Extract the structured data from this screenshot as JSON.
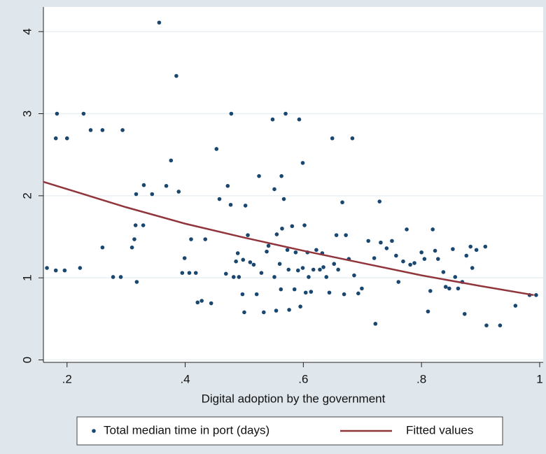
{
  "chart_data": {
    "type": "scatter",
    "x_label": "Digital adoption by the government",
    "xlim": [
      0.16,
      1.006
    ],
    "ylim": [
      -0.03,
      4.3
    ],
    "xticks": [
      {
        "value": 0.2,
        "label": ".2"
      },
      {
        "value": 0.4,
        "label": ".4"
      },
      {
        "value": 0.6,
        "label": ".6"
      },
      {
        "value": 0.8,
        "label": ".8"
      },
      1
    ],
    "yticks": [
      0,
      1,
      2,
      3,
      4
    ],
    "grid": true,
    "legend": "bottom",
    "series": [
      {
        "name": "Total median time in port (days)",
        "type": "scatter",
        "color": "#1a476f",
        "x": [
          0.166,
          0.183,
          0.181,
          0.181,
          0.196,
          0.2,
          0.222,
          0.228,
          0.24,
          0.26,
          0.26,
          0.278,
          0.291,
          0.294,
          0.31,
          0.314,
          0.316,
          0.318,
          0.317,
          0.329,
          0.33,
          0.344,
          0.356,
          0.368,
          0.376,
          0.385,
          0.389,
          0.395,
          0.399,
          0.407,
          0.41,
          0.418,
          0.421,
          0.428,
          0.434,
          0.444,
          0.453,
          0.458,
          0.469,
          0.472,
          0.477,
          0.478,
          0.482,
          0.486,
          0.489,
          0.491,
          0.497,
          0.498,
          0.5,
          0.502,
          0.506,
          0.51,
          0.516,
          0.521,
          0.525,
          0.529,
          0.533,
          0.538,
          0.541,
          0.548,
          0.551,
          0.551,
          0.554,
          0.555,
          0.56,
          0.562,
          0.563,
          0.564,
          0.567,
          0.57,
          0.573,
          0.575,
          0.576,
          0.581,
          0.585,
          0.587,
          0.591,
          0.593,
          0.595,
          0.599,
          0.599,
          0.602,
          0.604,
          0.607,
          0.609,
          0.613,
          0.617,
          0.622,
          0.628,
          0.632,
          0.634,
          0.639,
          0.644,
          0.649,
          0.652,
          0.656,
          0.659,
          0.666,
          0.669,
          0.672,
          0.677,
          0.683,
          0.686,
          0.693,
          0.699,
          0.71,
          0.72,
          0.722,
          0.729,
          0.731,
          0.741,
          0.75,
          0.757,
          0.761,
          0.769,
          0.775,
          0.781,
          0.788,
          0.8,
          0.805,
          0.811,
          0.815,
          0.819,
          0.823,
          0.828,
          0.837,
          0.841,
          0.847,
          0.853,
          0.857,
          0.862,
          0.869,
          0.873,
          0.876,
          0.883,
          0.886,
          0.893,
          0.908,
          0.91,
          0.933,
          0.959,
          0.983,
          0.994
        ],
        "values": [
          1.12,
          3.0,
          2.7,
          1.09,
          1.09,
          2.7,
          1.12,
          3.0,
          2.8,
          2.8,
          1.37,
          1.01,
          1.01,
          2.8,
          1.37,
          1.47,
          1.64,
          0.95,
          2.02,
          1.64,
          2.13,
          2.02,
          4.11,
          2.12,
          2.43,
          3.46,
          2.05,
          1.06,
          1.24,
          1.06,
          1.47,
          1.06,
          0.7,
          0.72,
          1.47,
          0.69,
          2.57,
          1.96,
          1.05,
          2.12,
          1.89,
          3.0,
          1.01,
          1.2,
          1.3,
          1.01,
          0.8,
          1.22,
          0.58,
          1.88,
          1.52,
          1.19,
          1.16,
          0.8,
          2.24,
          1.06,
          0.58,
          1.32,
          1.39,
          2.93,
          2.08,
          1.01,
          0.6,
          1.53,
          1.17,
          0.86,
          2.24,
          1.6,
          1.96,
          3.0,
          1.34,
          1.1,
          0.61,
          1.63,
          0.86,
          1.31,
          1.09,
          2.93,
          0.65,
          2.4,
          1.12,
          1.64,
          0.82,
          1.31,
          1.01,
          0.83,
          1.1,
          1.34,
          1.1,
          1.3,
          1.13,
          1.01,
          0.82,
          2.7,
          1.17,
          1.52,
          1.1,
          1.92,
          0.8,
          1.52,
          1.23,
          2.7,
          1.03,
          0.81,
          0.87,
          1.45,
          1.24,
          0.44,
          1.93,
          1.43,
          1.36,
          1.45,
          1.27,
          0.95,
          1.2,
          1.59,
          1.16,
          1.18,
          1.31,
          1.23,
          0.59,
          0.84,
          1.59,
          1.33,
          1.23,
          1.07,
          0.89,
          0.87,
          1.35,
          1.01,
          0.87,
          0.95,
          0.56,
          1.27,
          1.38,
          1.12,
          1.34,
          1.38,
          0.42,
          0.42,
          0.66,
          0.79,
          0.79
        ]
      },
      {
        "name": "Fitted values",
        "type": "line",
        "color": "#90353b",
        "x": [
          0.16,
          0.3,
          0.4,
          0.5,
          0.6,
          0.7,
          0.8,
          0.9,
          0.99
        ],
        "values": [
          2.17,
          1.86,
          1.66,
          1.49,
          1.33,
          1.18,
          1.03,
          0.9,
          0.79
        ]
      }
    ]
  }
}
